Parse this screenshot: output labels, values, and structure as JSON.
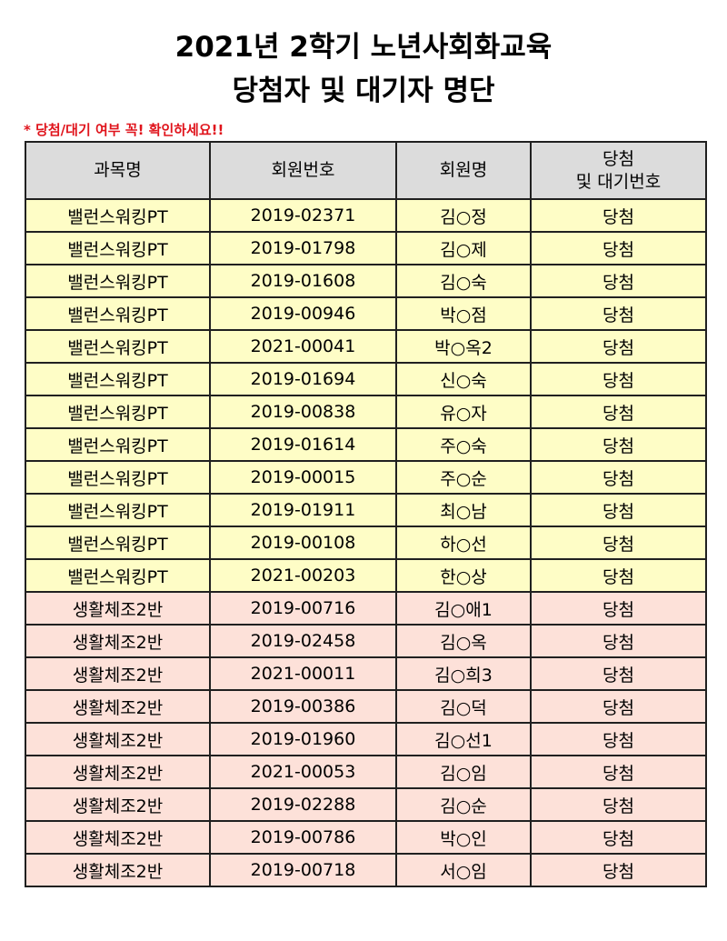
{
  "title_line1": "2021년 2학기 노년사회화교육",
  "title_line2": "당첨자 및 대기자 명단",
  "notice": "* 당첨/대기 여부 꼭! 확인하세요!!",
  "columns": {
    "course": "과목명",
    "member_no": "회원번호",
    "member_name": "회원명",
    "status_line1": "당첨",
    "status_line2": "및 대기번호"
  },
  "row_colors": {
    "밸런스워킹PT": "#fefdc6",
    "생활체조2반": "#fde1d9"
  },
  "rows": [
    {
      "course": "밸런스워킹PT",
      "member_no": "2019-02371",
      "member_name": "김○정",
      "status": "당첨"
    },
    {
      "course": "밸런스워킹PT",
      "member_no": "2019-01798",
      "member_name": "김○제",
      "status": "당첨"
    },
    {
      "course": "밸런스워킹PT",
      "member_no": "2019-01608",
      "member_name": "김○숙",
      "status": "당첨"
    },
    {
      "course": "밸런스워킹PT",
      "member_no": "2019-00946",
      "member_name": "박○점",
      "status": "당첨"
    },
    {
      "course": "밸런스워킹PT",
      "member_no": "2021-00041",
      "member_name": "박○옥2",
      "status": "당첨"
    },
    {
      "course": "밸런스워킹PT",
      "member_no": "2019-01694",
      "member_name": "신○숙",
      "status": "당첨"
    },
    {
      "course": "밸런스워킹PT",
      "member_no": "2019-00838",
      "member_name": "유○자",
      "status": "당첨"
    },
    {
      "course": "밸런스워킹PT",
      "member_no": "2019-01614",
      "member_name": "주○숙",
      "status": "당첨"
    },
    {
      "course": "밸런스워킹PT",
      "member_no": "2019-00015",
      "member_name": "주○순",
      "status": "당첨"
    },
    {
      "course": "밸런스워킹PT",
      "member_no": "2019-01911",
      "member_name": "최○남",
      "status": "당첨"
    },
    {
      "course": "밸런스워킹PT",
      "member_no": "2019-00108",
      "member_name": "하○선",
      "status": "당첨"
    },
    {
      "course": "밸런스워킹PT",
      "member_no": "2021-00203",
      "member_name": "한○상",
      "status": "당첨"
    },
    {
      "course": "생활체조2반",
      "member_no": "2019-00716",
      "member_name": "김○애1",
      "status": "당첨"
    },
    {
      "course": "생활체조2반",
      "member_no": "2019-02458",
      "member_name": "김○옥",
      "status": "당첨"
    },
    {
      "course": "생활체조2반",
      "member_no": "2021-00011",
      "member_name": "김○희3",
      "status": "당첨"
    },
    {
      "course": "생활체조2반",
      "member_no": "2019-00386",
      "member_name": "김○덕",
      "status": "당첨"
    },
    {
      "course": "생활체조2반",
      "member_no": "2019-01960",
      "member_name": "김○선1",
      "status": "당첨"
    },
    {
      "course": "생활체조2반",
      "member_no": "2021-00053",
      "member_name": "김○임",
      "status": "당첨"
    },
    {
      "course": "생활체조2반",
      "member_no": "2019-02288",
      "member_name": "김○순",
      "status": "당첨"
    },
    {
      "course": "생활체조2반",
      "member_no": "2019-00786",
      "member_name": "박○인",
      "status": "당첨"
    },
    {
      "course": "생활체조2반",
      "member_no": "2019-00718",
      "member_name": "서○임",
      "status": "당첨"
    }
  ]
}
